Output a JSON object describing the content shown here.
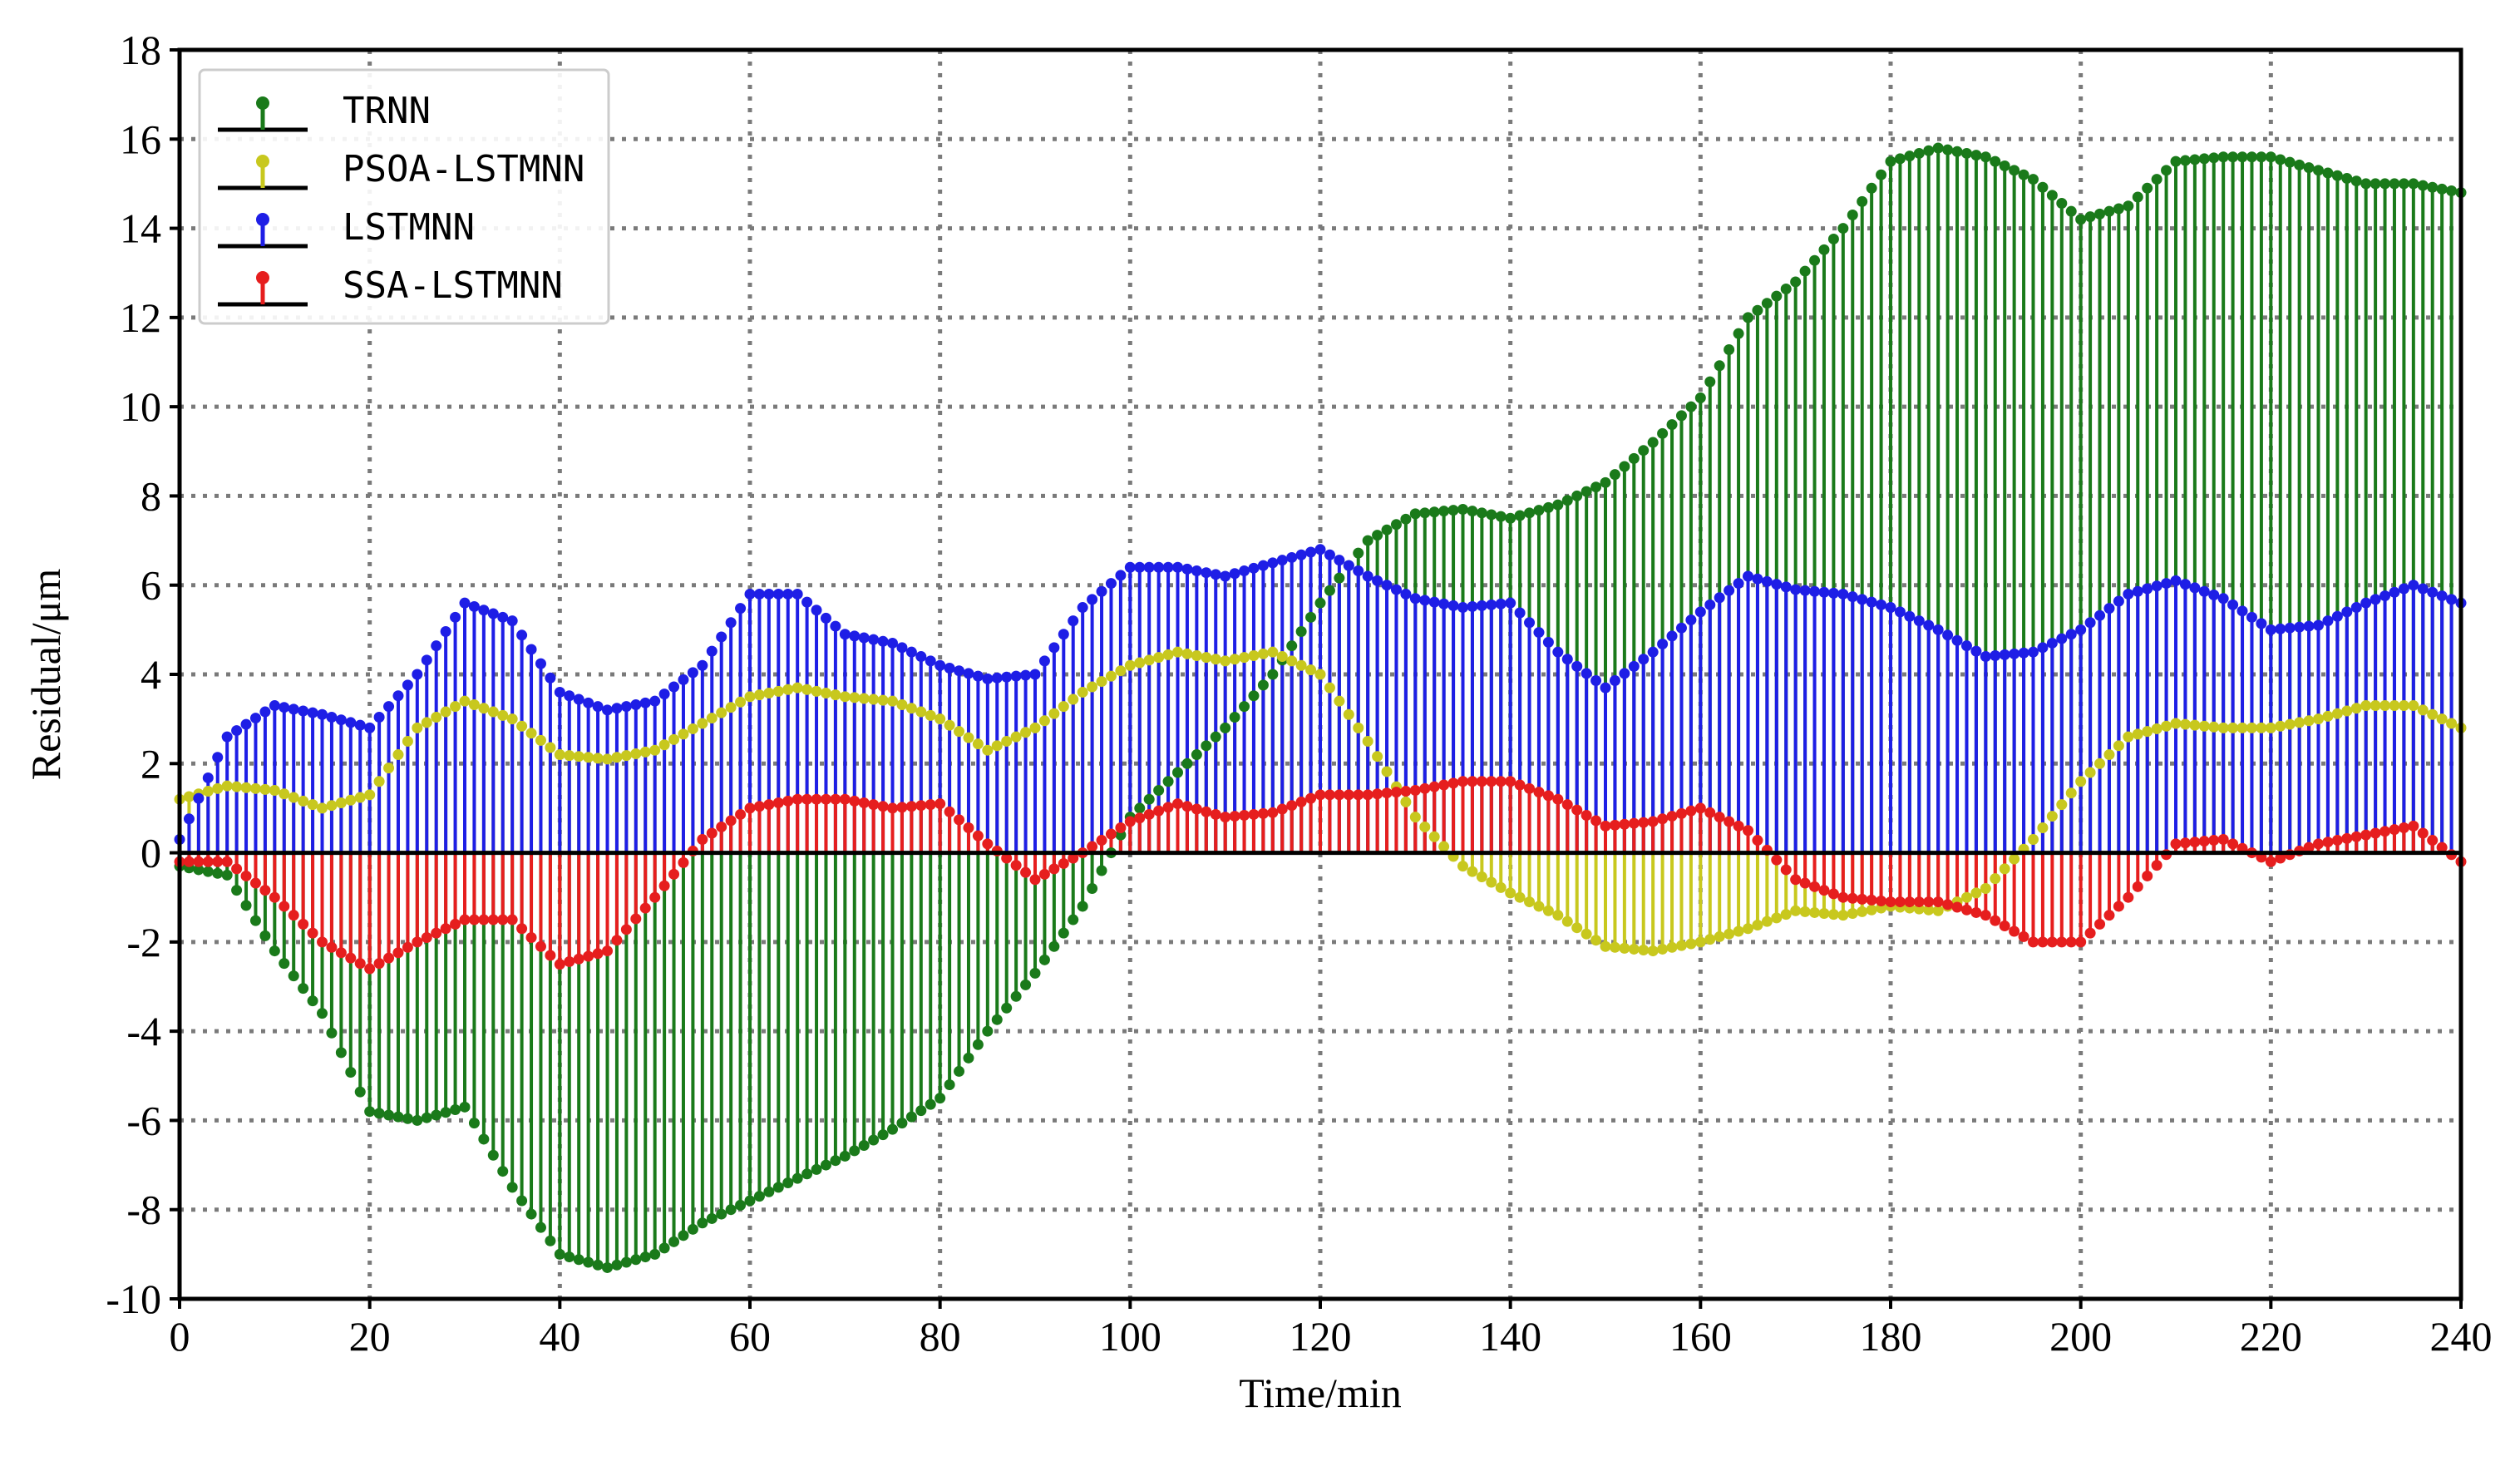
{
  "chart_data": {
    "type": "stem",
    "title": "",
    "xlabel": "Time/min",
    "ylabel": "Residual/μm",
    "xlim": [
      0,
      240
    ],
    "ylim": [
      -10,
      18
    ],
    "xticks": [
      0,
      20,
      40,
      60,
      80,
      100,
      120,
      140,
      160,
      180,
      200,
      220,
      240
    ],
    "yticks": [
      -10,
      -8,
      -6,
      -4,
      -2,
      0,
      2,
      4,
      6,
      8,
      10,
      12,
      14,
      16,
      18
    ],
    "grid": true,
    "legend_position": "top-left",
    "baseline": 0,
    "sample_step_min": 1,
    "series": [
      {
        "name": "TRNN",
        "color": "#1a7a1a",
        "points": [
          [
            0,
            -0.3
          ],
          [
            5,
            -0.5
          ],
          [
            10,
            -2.2
          ],
          [
            15,
            -3.6
          ],
          [
            20,
            -5.8
          ],
          [
            25,
            -6.0
          ],
          [
            30,
            -5.7
          ],
          [
            35,
            -7.5
          ],
          [
            40,
            -9.0
          ],
          [
            45,
            -9.3
          ],
          [
            50,
            -9.0
          ],
          [
            55,
            -8.3
          ],
          [
            60,
            -7.8
          ],
          [
            65,
            -7.3
          ],
          [
            70,
            -6.8
          ],
          [
            75,
            -6.2
          ],
          [
            80,
            -5.5
          ],
          [
            85,
            -4.0
          ],
          [
            90,
            -2.7
          ],
          [
            95,
            -1.2
          ],
          [
            100,
            0.8
          ],
          [
            105,
            1.8
          ],
          [
            110,
            2.8
          ],
          [
            115,
            4.0
          ],
          [
            120,
            5.6
          ],
          [
            125,
            7.0
          ],
          [
            130,
            7.6
          ],
          [
            135,
            7.7
          ],
          [
            140,
            7.5
          ],
          [
            145,
            7.8
          ],
          [
            150,
            8.3
          ],
          [
            155,
            9.2
          ],
          [
            160,
            10.2
          ],
          [
            165,
            12.0
          ],
          [
            170,
            12.8
          ],
          [
            175,
            14.0
          ],
          [
            180,
            15.5
          ],
          [
            185,
            15.8
          ],
          [
            190,
            15.6
          ],
          [
            195,
            15.1
          ],
          [
            200,
            14.2
          ],
          [
            205,
            14.5
          ],
          [
            210,
            15.5
          ],
          [
            215,
            15.6
          ],
          [
            220,
            15.6
          ],
          [
            225,
            15.3
          ],
          [
            230,
            15.0
          ],
          [
            235,
            15.0
          ],
          [
            240,
            14.8
          ]
        ]
      },
      {
        "name": "PSOA-LSTMNN",
        "color": "#c8c81e",
        "points": [
          [
            0,
            1.2
          ],
          [
            5,
            1.5
          ],
          [
            10,
            1.4
          ],
          [
            15,
            1.0
          ],
          [
            20,
            1.3
          ],
          [
            25,
            2.8
          ],
          [
            30,
            3.4
          ],
          [
            35,
            3.0
          ],
          [
            40,
            2.2
          ],
          [
            45,
            2.1
          ],
          [
            50,
            2.3
          ],
          [
            55,
            2.9
          ],
          [
            60,
            3.5
          ],
          [
            65,
            3.7
          ],
          [
            70,
            3.5
          ],
          [
            75,
            3.4
          ],
          [
            80,
            3.0
          ],
          [
            85,
            2.3
          ],
          [
            90,
            2.8
          ],
          [
            95,
            3.6
          ],
          [
            100,
            4.2
          ],
          [
            105,
            4.5
          ],
          [
            110,
            4.3
          ],
          [
            115,
            4.5
          ],
          [
            120,
            4.0
          ],
          [
            125,
            2.5
          ],
          [
            130,
            0.8
          ],
          [
            135,
            -0.3
          ],
          [
            140,
            -0.9
          ],
          [
            145,
            -1.4
          ],
          [
            150,
            -2.1
          ],
          [
            155,
            -2.2
          ],
          [
            160,
            -2.0
          ],
          [
            165,
            -1.7
          ],
          [
            170,
            -1.3
          ],
          [
            175,
            -1.4
          ],
          [
            180,
            -1.2
          ],
          [
            185,
            -1.3
          ],
          [
            190,
            -0.8
          ],
          [
            195,
            0.3
          ],
          [
            200,
            1.6
          ],
          [
            205,
            2.6
          ],
          [
            210,
            2.9
          ],
          [
            215,
            2.8
          ],
          [
            220,
            2.8
          ],
          [
            225,
            3.0
          ],
          [
            230,
            3.3
          ],
          [
            235,
            3.3
          ],
          [
            240,
            2.8
          ]
        ]
      },
      {
        "name": "LSTMNN",
        "color": "#1e1ee6",
        "points": [
          [
            0,
            0.3
          ],
          [
            5,
            2.6
          ],
          [
            10,
            3.3
          ],
          [
            15,
            3.1
          ],
          [
            20,
            2.8
          ],
          [
            25,
            4.0
          ],
          [
            30,
            5.6
          ],
          [
            35,
            5.2
          ],
          [
            40,
            3.6
          ],
          [
            45,
            3.2
          ],
          [
            50,
            3.4
          ],
          [
            55,
            4.2
          ],
          [
            60,
            5.8
          ],
          [
            65,
            5.8
          ],
          [
            70,
            4.9
          ],
          [
            75,
            4.7
          ],
          [
            80,
            4.2
          ],
          [
            85,
            3.9
          ],
          [
            90,
            4.0
          ],
          [
            95,
            5.5
          ],
          [
            100,
            6.4
          ],
          [
            105,
            6.4
          ],
          [
            110,
            6.2
          ],
          [
            115,
            6.5
          ],
          [
            120,
            6.8
          ],
          [
            125,
            6.2
          ],
          [
            130,
            5.7
          ],
          [
            135,
            5.5
          ],
          [
            140,
            5.6
          ],
          [
            145,
            4.5
          ],
          [
            150,
            3.7
          ],
          [
            155,
            4.5
          ],
          [
            160,
            5.4
          ],
          [
            165,
            6.2
          ],
          [
            170,
            5.9
          ],
          [
            175,
            5.8
          ],
          [
            180,
            5.5
          ],
          [
            185,
            5.0
          ],
          [
            190,
            4.4
          ],
          [
            195,
            4.5
          ],
          [
            200,
            5.0
          ],
          [
            205,
            5.8
          ],
          [
            210,
            6.1
          ],
          [
            215,
            5.7
          ],
          [
            220,
            5.0
          ],
          [
            225,
            5.1
          ],
          [
            230,
            5.6
          ],
          [
            235,
            6.0
          ],
          [
            240,
            5.6
          ]
        ]
      },
      {
        "name": "SSA-LSTMNN",
        "color": "#e61e1e",
        "points": [
          [
            0,
            -0.2
          ],
          [
            5,
            -0.2
          ],
          [
            10,
            -1.0
          ],
          [
            15,
            -2.0
          ],
          [
            20,
            -2.6
          ],
          [
            25,
            -2.0
          ],
          [
            30,
            -1.5
          ],
          [
            35,
            -1.5
          ],
          [
            40,
            -2.5
          ],
          [
            45,
            -2.2
          ],
          [
            50,
            -1.0
          ],
          [
            55,
            0.3
          ],
          [
            60,
            1.0
          ],
          [
            65,
            1.2
          ],
          [
            70,
            1.2
          ],
          [
            75,
            1.0
          ],
          [
            80,
            1.1
          ],
          [
            85,
            0.2
          ],
          [
            90,
            -0.6
          ],
          [
            95,
            0.0
          ],
          [
            100,
            0.7
          ],
          [
            105,
            1.1
          ],
          [
            110,
            0.8
          ],
          [
            115,
            0.9
          ],
          [
            120,
            1.3
          ],
          [
            125,
            1.3
          ],
          [
            130,
            1.4
          ],
          [
            135,
            1.6
          ],
          [
            140,
            1.6
          ],
          [
            145,
            1.2
          ],
          [
            150,
            0.6
          ],
          [
            155,
            0.7
          ],
          [
            160,
            1.0
          ],
          [
            165,
            0.5
          ],
          [
            170,
            -0.6
          ],
          [
            175,
            -1.0
          ],
          [
            180,
            -1.1
          ],
          [
            185,
            -1.1
          ],
          [
            190,
            -1.4
          ],
          [
            195,
            -2.0
          ],
          [
            200,
            -2.0
          ],
          [
            205,
            -1.0
          ],
          [
            210,
            0.2
          ],
          [
            215,
            0.3
          ],
          [
            220,
            -0.2
          ],
          [
            225,
            0.2
          ],
          [
            230,
            0.4
          ],
          [
            235,
            0.6
          ],
          [
            240,
            -0.2
          ]
        ]
      }
    ]
  }
}
